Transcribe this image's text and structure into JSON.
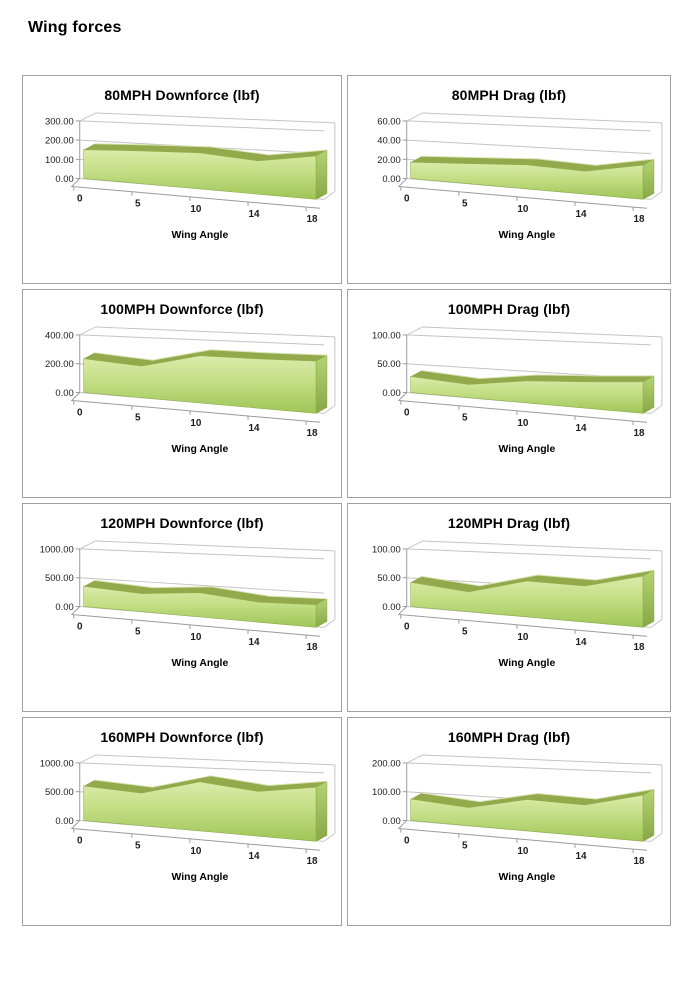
{
  "page": {
    "title": "Wing forces"
  },
  "chart_data": [
    {
      "type": "area",
      "title": "80MPH Downforce (lbf)",
      "xlabel": "Wing Angle",
      "categories": [
        "0",
        "5",
        "10",
        "14",
        "18"
      ],
      "values": [
        150,
        163,
        172,
        152,
        190
      ],
      "ylim": [
        0,
        300
      ],
      "yticks": [
        "300.00",
        "200.00",
        "100.00",
        "0.00"
      ],
      "grid": true,
      "legend": "none"
    },
    {
      "type": "area",
      "title": "80MPH Drag (lbf)",
      "xlabel": "Wing Angle",
      "categories": [
        "0",
        "5",
        "10",
        "14",
        "18"
      ],
      "values": [
        17,
        20,
        23,
        21,
        30
      ],
      "ylim": [
        0,
        60
      ],
      "yticks": [
        "60.00",
        "40.00",
        "20.00",
        "0.00"
      ],
      "grid": true,
      "legend": "none"
    },
    {
      "type": "area",
      "title": "100MPH Downforce (lbf)",
      "xlabel": "Wing Angle",
      "categories": [
        "0",
        "5",
        "10",
        "14",
        "18"
      ],
      "values": [
        235,
        210,
        300,
        300,
        305
      ],
      "ylim": [
        0,
        400
      ],
      "yticks": [
        "400.00",
        "200.00",
        "0.00"
      ],
      "grid": true,
      "legend": "none"
    },
    {
      "type": "area",
      "title": "100MPH Drag (lbf)",
      "xlabel": "Wing Angle",
      "categories": [
        "0",
        "5",
        "10",
        "14",
        "18"
      ],
      "values": [
        28,
        22,
        35,
        40,
        46
      ],
      "ylim": [
        0,
        100
      ],
      "yticks": [
        "100.00",
        "50.00",
        "0.00"
      ],
      "grid": true,
      "legend": "none"
    },
    {
      "type": "area",
      "title": "120MPH Downforce (lbf)",
      "xlabel": "Wing Angle",
      "categories": [
        "0",
        "5",
        "10",
        "14",
        "18"
      ],
      "values": [
        350,
        300,
        385,
        305,
        330
      ],
      "ylim": [
        0,
        1000
      ],
      "yticks": [
        "1000.00",
        "500.00",
        "0.00"
      ],
      "grid": true,
      "legend": "none"
    },
    {
      "type": "area",
      "title": "120MPH Drag (lbf)",
      "xlabel": "Wing Angle",
      "categories": [
        "0",
        "5",
        "10",
        "14",
        "18"
      ],
      "values": [
        42,
        33,
        57,
        55,
        75
      ],
      "ylim": [
        0,
        100
      ],
      "yticks": [
        "100.00",
        "50.00",
        "0.00"
      ],
      "grid": true,
      "legend": "none"
    },
    {
      "type": "area",
      "title": "160MPH Downforce (lbf)",
      "xlabel": "Wing Angle",
      "categories": [
        "0",
        "5",
        "10",
        "14",
        "18"
      ],
      "values": [
        600,
        540,
        780,
        680,
        790
      ],
      "ylim": [
        0,
        1000
      ],
      "yticks": [
        "1000.00",
        "500.00",
        "0.00"
      ],
      "grid": true,
      "legend": "none"
    },
    {
      "type": "area",
      "title": "160MPH Drag (lbf)",
      "xlabel": "Wing Angle",
      "categories": [
        "0",
        "5",
        "10",
        "14",
        "18"
      ],
      "values": [
        75,
        60,
        100,
        95,
        135
      ],
      "ylim": [
        0,
        200
      ],
      "yticks": [
        "200.00",
        "100.00",
        "0.00"
      ],
      "grid": true,
      "legend": "none"
    }
  ],
  "style": {
    "panel_border": "#a0a0a0",
    "grid_color": "#c4c4c4",
    "axis_color": "#9b9b9b",
    "face_top": "#dcebaa",
    "face_mid": "#c3de84",
    "face_bottom": "#9fc557",
    "ribbon": "#93a94c",
    "cap_top": "#b4d471",
    "cap_bottom": "#88a746"
  }
}
